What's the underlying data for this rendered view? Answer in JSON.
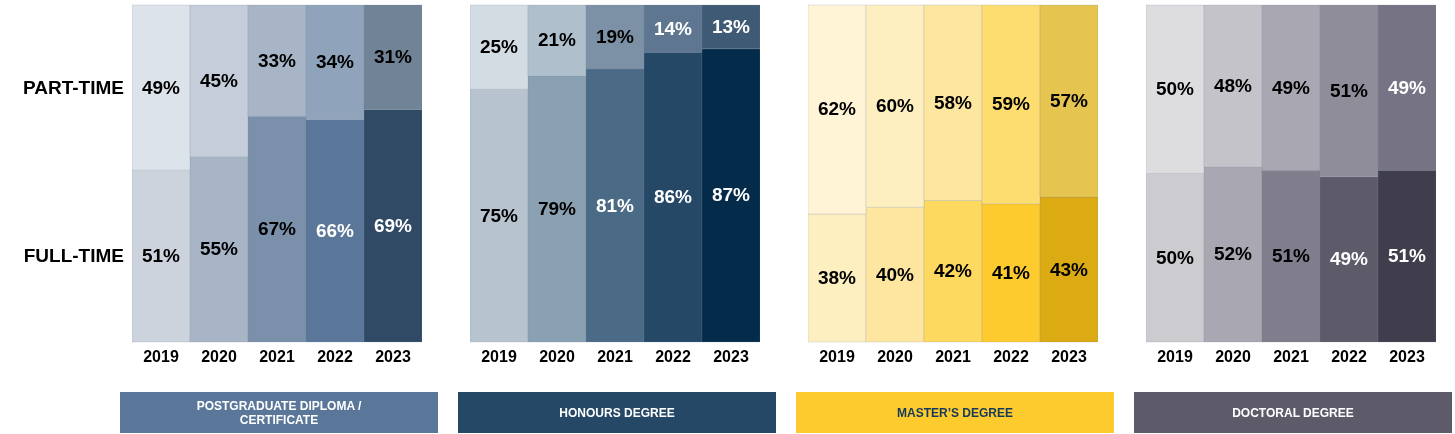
{
  "chart_data": [
    {
      "type": "bar",
      "stacked": true,
      "title": "POSTGRADUATE DIPLOMA / CERTIFICATE",
      "categories": [
        "2019",
        "2020",
        "2021",
        "2022",
        "2023"
      ],
      "ylim": [
        0,
        100
      ],
      "series": [
        {
          "name": "FULL-TIME",
          "colors": [
            "#ccd3dc",
            "#a7b5c6",
            "#7b91ab",
            "#5a7799",
            "#304a66"
          ],
          "values": [
            51,
            55,
            67,
            66,
            69
          ],
          "value_labels": [
            "51%",
            "55%",
            "67%",
            "66%",
            "69%"
          ]
        },
        {
          "name": "PART-TIME",
          "colors": [
            "#dde3ea",
            "#c4cdd9",
            "#a7b5c6",
            "#8fa4bb",
            "#718397"
          ],
          "values": [
            49,
            45,
            33,
            34,
            31
          ],
          "value_labels": [
            "49%",
            "45%",
            "33%",
            "34%",
            "31%"
          ]
        }
      ]
    },
    {
      "type": "bar",
      "stacked": true,
      "title": "HONOURS DEGREE",
      "categories": [
        "2019",
        "2020",
        "2021",
        "2022",
        "2023"
      ],
      "ylim": [
        0,
        100
      ],
      "series": [
        {
          "colors": [
            "#b7c4cf",
            "#8aa0b3",
            "#4b6a86",
            "#244866",
            "#042b4a"
          ],
          "values": [
            75,
            79,
            81,
            86,
            87
          ],
          "value_labels": [
            "75%",
            "79%",
            "81%",
            "86%",
            "87%"
          ]
        },
        {
          "colors": [
            "#d4dce3",
            "#b0bfcc",
            "#7c91a5",
            "#5e7690",
            "#3f5a74"
          ],
          "values": [
            25,
            21,
            19,
            14,
            13
          ],
          "value_labels": [
            "25%",
            "21%",
            "19%",
            "14%",
            "13%"
          ]
        }
      ]
    },
    {
      "type": "bar",
      "stacked": true,
      "title": "MASTER’S DEGREE",
      "categories": [
        "2019",
        "2020",
        "2021",
        "2022",
        "2023"
      ],
      "ylim": [
        0,
        100
      ],
      "series": [
        {
          "colors": [
            "#fdefc0",
            "#fee6a0",
            "#fed95f",
            "#fdcb2e",
            "#dcaa12"
          ],
          "values": [
            38,
            40,
            42,
            41,
            43
          ],
          "value_labels": [
            "38%",
            "40%",
            "42%",
            "41%",
            "43%"
          ]
        },
        {
          "colors": [
            "#fff4d6",
            "#fdefc0",
            "#fde6a0",
            "#fddc70",
            "#e5c450"
          ],
          "values": [
            62,
            60,
            58,
            59,
            57
          ],
          "value_labels": [
            "62%",
            "60%",
            "58%",
            "59%",
            "57%"
          ]
        }
      ]
    },
    {
      "type": "bar",
      "stacked": true,
      "title": "DOCTORAL DEGREE",
      "categories": [
        "2019",
        "2020",
        "2021",
        "2022",
        "2023"
      ],
      "ylim": [
        0,
        100
      ],
      "series": [
        {
          "colors": [
            "#cccbd0",
            "#a9a8b2",
            "#807d8c",
            "#5d5a6a",
            "#403d4d"
          ],
          "values": [
            50,
            52,
            51,
            49,
            51
          ],
          "value_labels": [
            "50%",
            "52%",
            "51%",
            "49%",
            "51%"
          ]
        },
        {
          "colors": [
            "#dddde0",
            "#c4c3c9",
            "#a9a8b2",
            "#8f8d99",
            "#767484"
          ],
          "values": [
            50,
            48,
            49,
            51,
            49
          ],
          "value_labels": [
            "50%",
            "48%",
            "49%",
            "51%",
            "49%"
          ]
        }
      ]
    }
  ]
}
